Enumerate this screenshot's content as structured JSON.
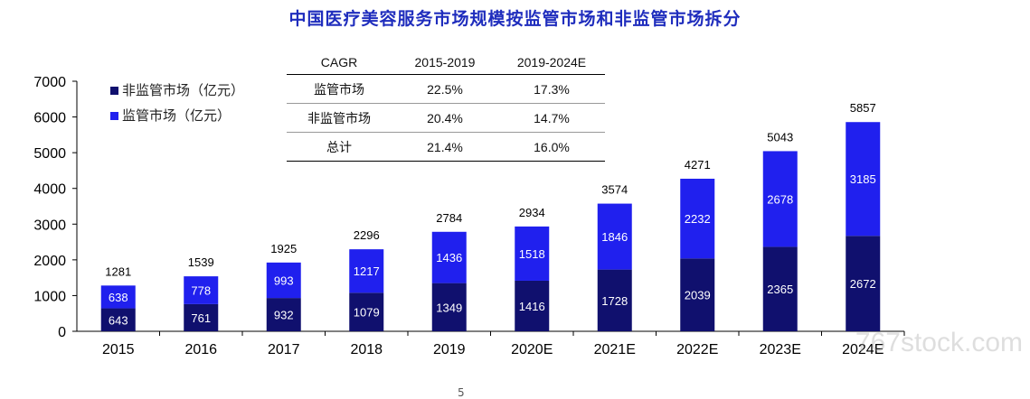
{
  "title": "中国医疗美容服务市场规模按监管市场和非监管市场拆分",
  "legend": [
    {
      "label": "非监管市场（亿元）",
      "color": "#10106e"
    },
    {
      "label": "监管市场（亿元）",
      "color": "#2020ee"
    }
  ],
  "cagr_table": {
    "headers": [
      "CAGR",
      "2015-2019",
      "2019-2024E"
    ],
    "rows": [
      [
        "监管市场",
        "22.5%",
        "17.3%"
      ],
      [
        "非监管市场",
        "20.4%",
        "14.7%"
      ],
      [
        "总计",
        "21.4%",
        "16.0%"
      ]
    ]
  },
  "watermark": "767stock.com",
  "footer": {
    "page": "5"
  },
  "chart_data": {
    "type": "bar",
    "stacked": true,
    "categories": [
      "2015",
      "2016",
      "2017",
      "2018",
      "2019",
      "2020E",
      "2021E",
      "2022E",
      "2023E",
      "2024E"
    ],
    "series": [
      {
        "name": "非监管市场（亿元）",
        "color": "#10106e",
        "values": [
          643,
          761,
          932,
          1079,
          1349,
          1416,
          1728,
          2039,
          2365,
          2672
        ]
      },
      {
        "name": "监管市场（亿元）",
        "color": "#2020ee",
        "values": [
          638,
          778,
          993,
          1217,
          1436,
          1518,
          1846,
          2232,
          2678,
          3185
        ]
      }
    ],
    "totals": [
      1281,
      1539,
      1925,
      2296,
      2784,
      2934,
      3574,
      4271,
      5043,
      5857
    ],
    "ylim": [
      0,
      7000
    ],
    "yticks": [
      0,
      1000,
      2000,
      3000,
      4000,
      5000,
      6000,
      7000
    ],
    "grid": false,
    "legend_position": "top-left"
  }
}
